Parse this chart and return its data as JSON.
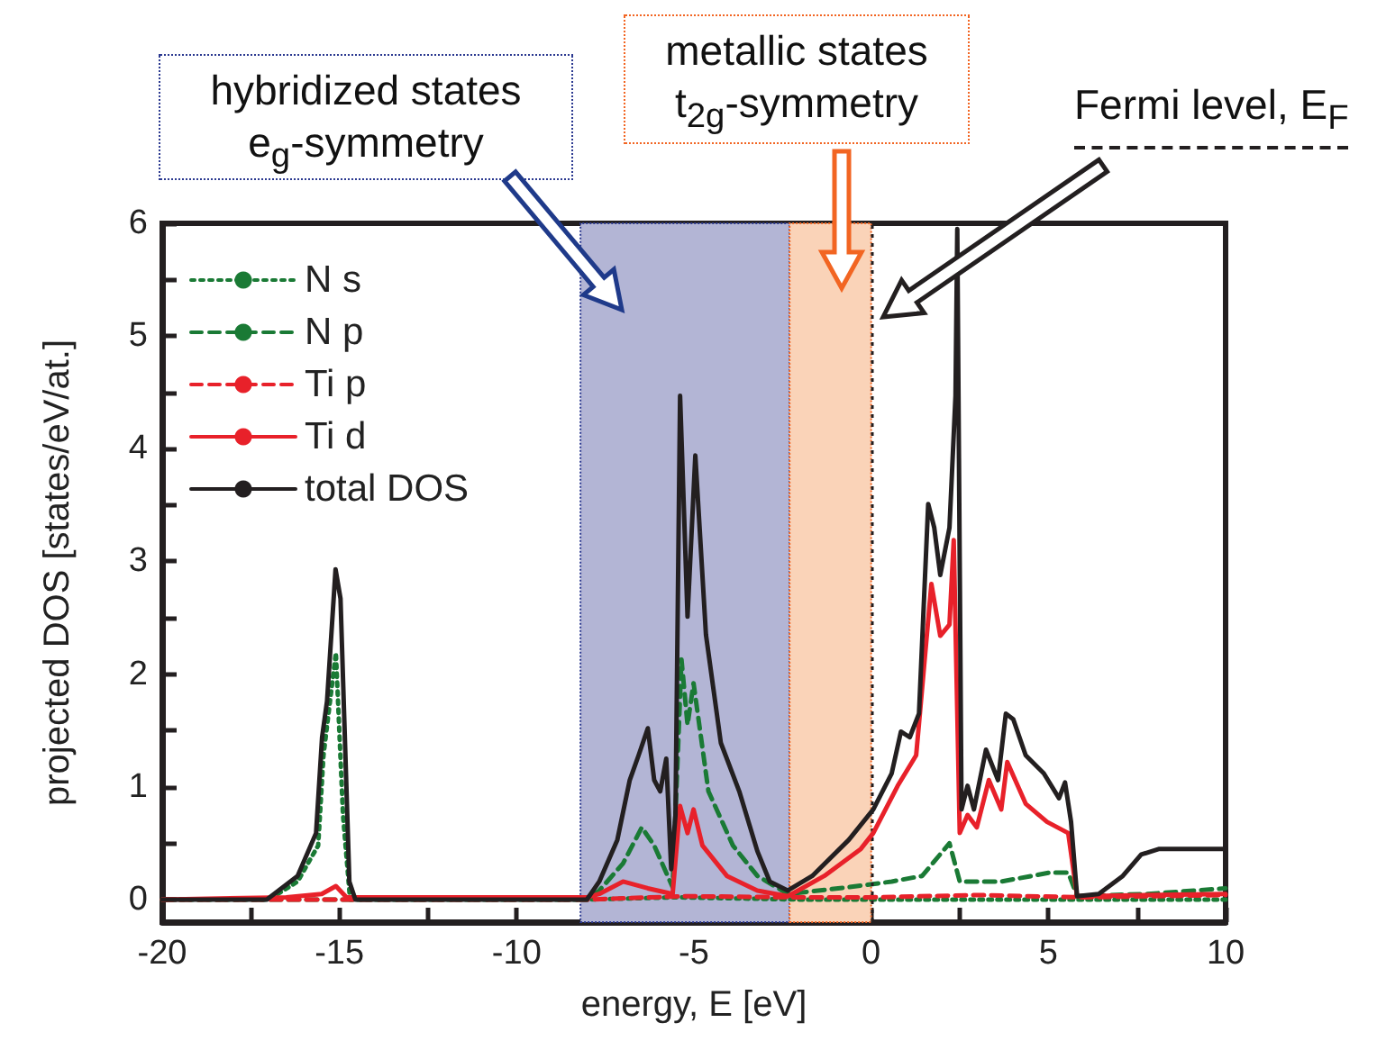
{
  "chart_data": {
    "type": "line",
    "xlabel": "energy, E [eV]",
    "ylabel": "projected DOS [states/eV/at.]",
    "xlim": [
      -20,
      10
    ],
    "xticks": [
      -20,
      -15,
      -10,
      -5,
      0,
      5,
      10
    ],
    "ylim": [
      -0.2,
      6
    ],
    "yticks": [
      0,
      1,
      2,
      3,
      4,
      5,
      6
    ],
    "grid": false,
    "legend": "top left",
    "marker": "none",
    "bands": [
      {
        "axis": "x",
        "from": -8.2,
        "to": -2.3,
        "label": "hybridized states\ne$_{g}$-symmetry",
        "color": "#b3b5d5"
      },
      {
        "axis": "x",
        "from": -2.3,
        "to": 0,
        "label": "metallic states\nt$_{2g}$-symmetry",
        "color": "#fad3b8"
      }
    ],
    "ref_lines": [
      {
        "axis": "x",
        "value": 0,
        "color": "#231f20",
        "line_style": "dotted"
      }
    ],
    "annotations": [
      "Fermi level, E$_{F}$"
    ],
    "series": [
      {
        "name": "N s",
        "color": "#1a7a35",
        "line_style": "dotted",
        "x": [
          -20,
          -17,
          -16.18,
          -15.6,
          -15.45,
          -15.1,
          -14.9,
          -14.7,
          -8,
          -5.5,
          -2,
          10
        ],
        "values": [
          0,
          0,
          0.16,
          0.48,
          1.28,
          2.19,
          0.75,
          0,
          0,
          0.02,
          0,
          0
        ]
      },
      {
        "name": "N p",
        "color": "#1a7a35",
        "line_style": "dashed",
        "x": [
          -20,
          -8,
          -7.67,
          -7,
          -6.47,
          -6.12,
          -5.6,
          -5.35,
          -5.18,
          -5.01,
          -4.59,
          -3.9,
          -3.21,
          -2.35,
          -0.63,
          0.58,
          1.44,
          2.21,
          2.5,
          3.67,
          5.05,
          5.56,
          5.81,
          7.8,
          10
        ],
        "values": [
          0,
          0,
          0.08,
          0.32,
          0.64,
          0.48,
          0.11,
          2.13,
          1.55,
          1.92,
          0.96,
          0.48,
          0.21,
          0.05,
          0.11,
          0.16,
          0.21,
          0.5,
          0.16,
          0.16,
          0.24,
          0.24,
          0.03,
          0.05,
          0.1
        ]
      },
      {
        "name": "Ti p",
        "color": "#e8212a",
        "line_style": "dashed",
        "x": [
          -20,
          -8,
          -5.3,
          -2,
          0,
          3,
          6,
          10
        ],
        "values": [
          0,
          0,
          0.03,
          0.02,
          0.02,
          0.04,
          0.02,
          0.04
        ]
      },
      {
        "name": "Ti d",
        "color": "#e8212a",
        "line_style": "solid",
        "x": [
          -20,
          -16.5,
          -15.5,
          -15.1,
          -14.8,
          -8,
          -7.67,
          -7,
          -6.3,
          -5.6,
          -5.39,
          -5.18,
          -5.01,
          -4.76,
          -4.07,
          -3.21,
          -2.35,
          -1.32,
          -0.29,
          0.06,
          0.75,
          1.27,
          1.7,
          1.95,
          2.21,
          2.33,
          2.5,
          2.72,
          2.98,
          3.32,
          3.67,
          3.84,
          4.36,
          4.96,
          5.56,
          5.81,
          10
        ],
        "values": [
          0,
          0.02,
          0.05,
          0.12,
          0.02,
          0.02,
          0.05,
          0.16,
          0.1,
          0.05,
          0.83,
          0.59,
          0.8,
          0.48,
          0.21,
          0.08,
          0.03,
          0.21,
          0.45,
          0.59,
          1.01,
          1.28,
          2.8,
          2.34,
          2.44,
          3.19,
          0.59,
          0.75,
          0.64,
          1.06,
          0.8,
          1.22,
          0.85,
          0.69,
          0.59,
          0.03,
          0.05
        ]
      },
      {
        "name": "total DOS",
        "color": "#231f20",
        "line_style": "solid",
        "x": [
          -20,
          -17.05,
          -16.18,
          -15.66,
          -15.49,
          -15.35,
          -15.11,
          -14.97,
          -14.72,
          -14.55,
          -8.02,
          -7.67,
          -7.16,
          -6.81,
          -6.56,
          -6.3,
          -6.12,
          -5.95,
          -5.78,
          -5.64,
          -5.52,
          -5.39,
          -5.18,
          -4.96,
          -4.66,
          -4.24,
          -3.72,
          -3.21,
          -2.86,
          -2.35,
          -1.66,
          -0.63,
          0.06,
          0.58,
          0.84,
          1.09,
          1.35,
          1.61,
          1.78,
          1.95,
          2.21,
          2.38,
          2.43,
          2.55,
          2.72,
          2.9,
          3.24,
          3.58,
          3.8,
          4.01,
          4.36,
          4.87,
          5.3,
          5.47,
          5.64,
          5.81,
          6.42,
          7.1,
          7.62,
          8.13,
          10
        ],
        "values": [
          0,
          0,
          0.21,
          0.59,
          1.44,
          1.76,
          2.93,
          2.67,
          0.16,
          0,
          0,
          0.16,
          0.53,
          1.06,
          1.28,
          1.52,
          1.06,
          0.96,
          1.25,
          0.27,
          0.75,
          4.47,
          2.51,
          3.94,
          2.35,
          1.39,
          0.96,
          0.43,
          0.16,
          0.08,
          0.21,
          0.53,
          0.8,
          1.12,
          1.49,
          1.44,
          1.65,
          3.51,
          3.3,
          2.88,
          3.3,
          4.47,
          5.95,
          0.8,
          1.01,
          0.8,
          1.33,
          1.06,
          1.65,
          1.6,
          1.28,
          1.12,
          0.9,
          1.04,
          0.69,
          0.03,
          0.05,
          0.21,
          0.4,
          0.45,
          0.45
        ]
      }
    ]
  }
}
